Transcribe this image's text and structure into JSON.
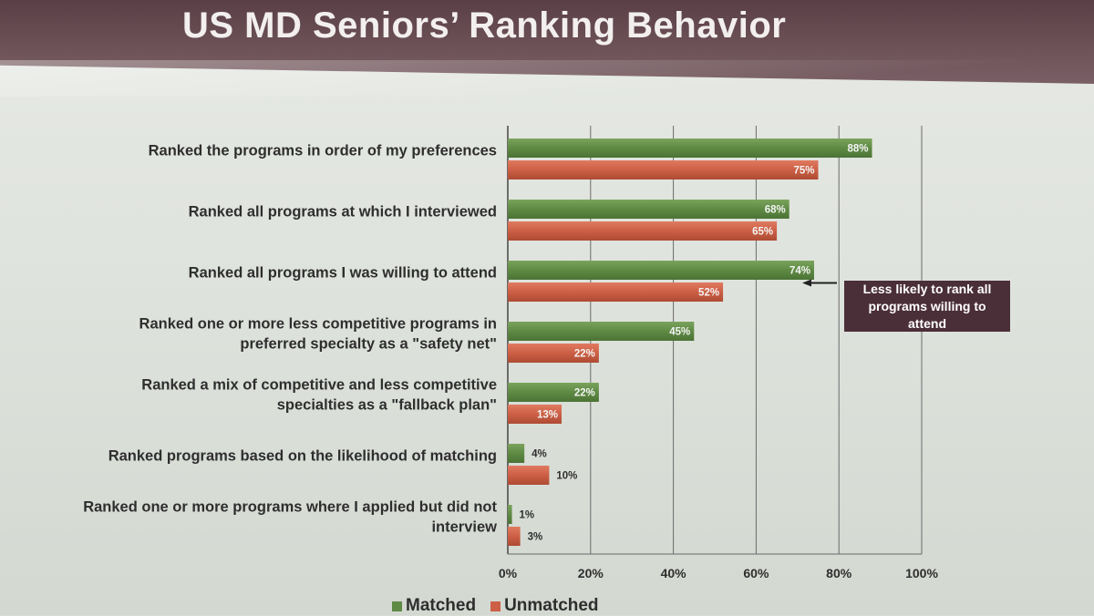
{
  "slide": {
    "title": "US MD Seniors’ Ranking Behavior"
  },
  "callout": {
    "text_line1": "Less likely to rank all",
    "text_line2": "programs willing to attend"
  },
  "colors": {
    "matched": "#5e8a44",
    "unmatched": "#cc5f45"
  },
  "chart_data": {
    "type": "bar",
    "orientation": "horizontal",
    "categories": [
      [
        "Ranked the programs in order of my preferences"
      ],
      [
        "Ranked all programs at which I interviewed"
      ],
      [
        "Ranked all programs I was willing to attend"
      ],
      [
        "Ranked one or more less competitive programs in",
        "preferred specialty as a \"safety net\""
      ],
      [
        "Ranked a mix of competitive and less competitive",
        "specialties as a \"fallback plan\""
      ],
      [
        "Ranked programs based on the likelihood of matching"
      ],
      [
        "Ranked one or more programs where I applied but did not",
        "interview"
      ]
    ],
    "series": [
      {
        "name": "Matched",
        "values": [
          88,
          68,
          74,
          45,
          22,
          4,
          1
        ]
      },
      {
        "name": "Unmatched",
        "values": [
          75,
          65,
          52,
          22,
          13,
          10,
          3
        ]
      }
    ],
    "value_labels": {
      "Matched": [
        "88%",
        "68%",
        "74%",
        "45%",
        "22%",
        "4%",
        "1%"
      ],
      "Unmatched": [
        "75%",
        "65%",
        "52%",
        "22%",
        "13%",
        "10%",
        "3%"
      ]
    },
    "xlim": [
      0,
      100
    ],
    "xticks": [
      0,
      20,
      40,
      60,
      80,
      100
    ],
    "xtick_labels": [
      "0%",
      "20%",
      "40%",
      "60%",
      "80%",
      "100%"
    ],
    "grid": "vertical",
    "legend": "bottom-center",
    "callout_target": "Ranked all programs I was willing to attend"
  }
}
